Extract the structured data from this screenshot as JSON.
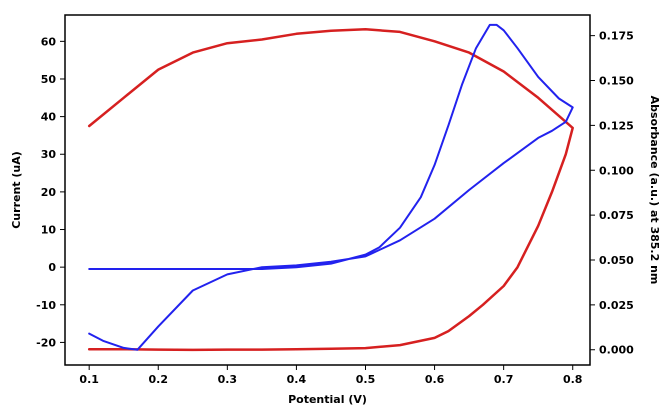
{
  "chart_data": {
    "type": "line",
    "title": "",
    "xlabel": "Potential (V)",
    "ylabel_left": "Current (uA)",
    "ylabel_right": "Absorbance (a.u.) at 385.2 nm",
    "xlim": [
      0.065,
      0.825
    ],
    "ylim_left": [
      -26,
      67
    ],
    "ylim_right": [
      -0.0085,
      0.1865
    ],
    "x_ticks": [
      0.1,
      0.2,
      0.3,
      0.4,
      0.5,
      0.6,
      0.7,
      0.8
    ],
    "x_tick_labels": [
      "0.1",
      "0.2",
      "0.3",
      "0.4",
      "0.5",
      "0.6",
      "0.7",
      "0.8"
    ],
    "y_left_ticks": [
      -20,
      -10,
      0,
      10,
      20,
      30,
      40,
      50,
      60
    ],
    "y_left_tick_labels": [
      "-20",
      "-10",
      "0",
      "10",
      "20",
      "30",
      "40",
      "50",
      "60"
    ],
    "y_right_ticks": [
      0,
      0.025,
      0.05,
      0.075,
      0.1,
      0.125,
      0.15,
      0.175
    ],
    "y_right_tick_labels": [
      "0.000",
      "0.025",
      "0.050",
      "0.075",
      "0.100",
      "0.125",
      "0.150",
      "0.175"
    ],
    "grid": false,
    "series": [
      {
        "axis": "left",
        "color": "#d62020",
        "x": [
          0.1,
          0.15,
          0.2,
          0.25,
          0.3,
          0.35,
          0.4,
          0.45,
          0.5,
          0.55,
          0.6,
          0.65,
          0.7,
          0.75,
          0.8,
          0.79,
          0.77,
          0.75,
          0.72,
          0.7,
          0.67,
          0.65,
          0.62,
          0.6,
          0.55,
          0.5,
          0.45,
          0.4,
          0.35,
          0.3,
          0.25,
          0.2,
          0.15,
          0.1
        ],
        "y": [
          37.5,
          45,
          52.5,
          57,
          59.5,
          60.5,
          62,
          62.8,
          63.2,
          62.5,
          60,
          57,
          52,
          45,
          37,
          30,
          20,
          11,
          0,
          -5,
          -10,
          -13,
          -17,
          -18.8,
          -20.7,
          -21.5,
          -21.7,
          -21.8,
          -21.9,
          -21.9,
          -22,
          -21.9,
          -21.8,
          -21.8
        ]
      },
      {
        "axis": "right",
        "color": "#2222ee",
        "x": [
          0.1,
          0.15,
          0.2,
          0.25,
          0.3,
          0.35,
          0.4,
          0.45,
          0.5,
          0.52,
          0.55,
          0.58,
          0.6,
          0.62,
          0.64,
          0.66,
          0.68,
          0.69,
          0.7,
          0.72,
          0.75,
          0.78,
          0.8,
          0.79,
          0.77,
          0.75,
          0.7,
          0.65,
          0.6,
          0.55,
          0.5,
          0.45,
          0.4,
          0.35,
          0.3,
          0.25,
          0.2,
          0.17,
          0.15,
          0.12,
          0.1
        ],
        "y": [
          0.045,
          0.045,
          0.045,
          0.045,
          0.045,
          0.045,
          0.046,
          0.048,
          0.053,
          0.057,
          0.068,
          0.085,
          0.103,
          0.125,
          0.148,
          0.168,
          0.181,
          0.181,
          0.178,
          0.168,
          0.152,
          0.14,
          0.135,
          0.127,
          0.122,
          0.118,
          0.104,
          0.089,
          0.073,
          0.061,
          0.052,
          0.049,
          0.047,
          0.046,
          0.042,
          0.033,
          0.013,
          0.0,
          0.001,
          0.005,
          0.009
        ]
      }
    ]
  }
}
